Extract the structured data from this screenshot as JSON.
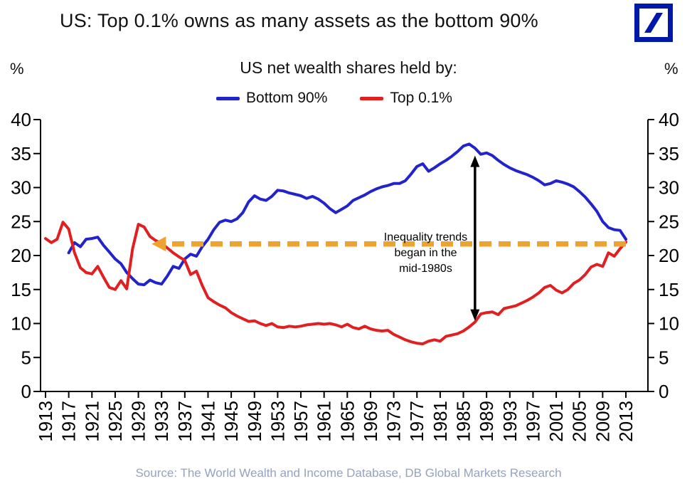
{
  "page_title": "US: Top 0.1% owns as many assets as the bottom 90%",
  "logo": {
    "name": "deutsche-bank-logo",
    "color": "#0018A8"
  },
  "axis_units": {
    "left": "%",
    "right": "%"
  },
  "legend": [
    {
      "label": "Bottom 90%",
      "color": "#2323CC"
    },
    {
      "label": "Top 0.1%",
      "color": "#E11F20"
    }
  ],
  "source": "Source: The World Wealth and Income Database, DB Global Markets Research",
  "chart_data": {
    "type": "line",
    "title": "US net wealth shares held by:",
    "xlabel": "",
    "ylabel": "%",
    "ylim": [
      0,
      40
    ],
    "ytick_step": 5,
    "x_start": 1913,
    "x_end": 2013,
    "xtick_step": 4,
    "grid": false,
    "legend_position": "top",
    "series": [
      {
        "name": "Bottom 90%",
        "color": "#2323CC",
        "start_year": 1917,
        "values": [
          20.4,
          21.9,
          21.3,
          22.4,
          22.5,
          22.7,
          21.5,
          20.5,
          19.5,
          18.8,
          17.5,
          16.6,
          15.8,
          15.7,
          16.4,
          16.0,
          15.8,
          17.0,
          18.4,
          18.1,
          19.5,
          20.2,
          19.9,
          21.3,
          22.4,
          23.8,
          24.9,
          25.2,
          25.0,
          25.4,
          26.3,
          27.9,
          28.8,
          28.3,
          28.1,
          28.7,
          29.6,
          29.5,
          29.2,
          29.0,
          28.8,
          28.4,
          28.7,
          28.3,
          27.7,
          26.9,
          26.3,
          26.8,
          27.3,
          28.1,
          28.5,
          28.9,
          29.4,
          29.8,
          30.1,
          30.3,
          30.6,
          30.6,
          31.0,
          32.0,
          33.1,
          33.5,
          32.4,
          32.9,
          33.5,
          34.0,
          34.6,
          35.3,
          36.1,
          36.4,
          35.8,
          34.9,
          35.1,
          34.7,
          34.0,
          33.4,
          32.9,
          32.5,
          32.2,
          31.9,
          31.5,
          31.0,
          30.4,
          30.6,
          31.0,
          30.8,
          30.5,
          30.1,
          29.4,
          28.6,
          27.6,
          26.5,
          25.0,
          24.1,
          23.8,
          23.7,
          22.4
        ]
      },
      {
        "name": "Top 0.1%",
        "color": "#E11F20",
        "start_year": 1913,
        "values": [
          22.5,
          21.9,
          22.4,
          24.9,
          23.9,
          20.4,
          18.2,
          17.5,
          17.3,
          18.4,
          16.8,
          15.3,
          15.0,
          16.3,
          15.1,
          21.0,
          24.6,
          24.2,
          22.8,
          22.2,
          21.8,
          21.1,
          20.4,
          19.8,
          19.3,
          17.2,
          17.7,
          15.6,
          13.8,
          13.2,
          12.7,
          12.3,
          11.6,
          11.1,
          10.7,
          10.3,
          10.4,
          10.0,
          9.7,
          10.0,
          9.5,
          9.4,
          9.6,
          9.5,
          9.6,
          9.8,
          9.9,
          10.0,
          9.9,
          10.0,
          9.8,
          9.5,
          9.9,
          9.4,
          9.2,
          9.6,
          9.2,
          9.0,
          8.9,
          9.0,
          8.4,
          8.0,
          7.6,
          7.3,
          7.1,
          7.0,
          7.4,
          7.6,
          7.4,
          8.1,
          8.3,
          8.5,
          8.9,
          9.5,
          10.2,
          11.4,
          11.6,
          11.7,
          11.3,
          12.2,
          12.4,
          12.6,
          13.0,
          13.4,
          13.9,
          14.5,
          15.3,
          15.6,
          14.9,
          14.5,
          15.0,
          15.9,
          16.4,
          17.2,
          18.3,
          18.7,
          18.4,
          20.4,
          19.9,
          21.0,
          22.0
        ]
      }
    ],
    "annotations": {
      "dashed_arrow": {
        "color": "#EFA32F",
        "value": 21.7,
        "from_year": 2013,
        "to_year": 1931.3
      },
      "double_arrow": {
        "color": "#000000",
        "year": 1987,
        "top_value": 34.7,
        "bottom_value": 10.4
      },
      "note": {
        "lines": [
          "Inequality trends",
          "began in the",
          "mid-1980s"
        ],
        "center_year": 1978.5
      }
    }
  }
}
